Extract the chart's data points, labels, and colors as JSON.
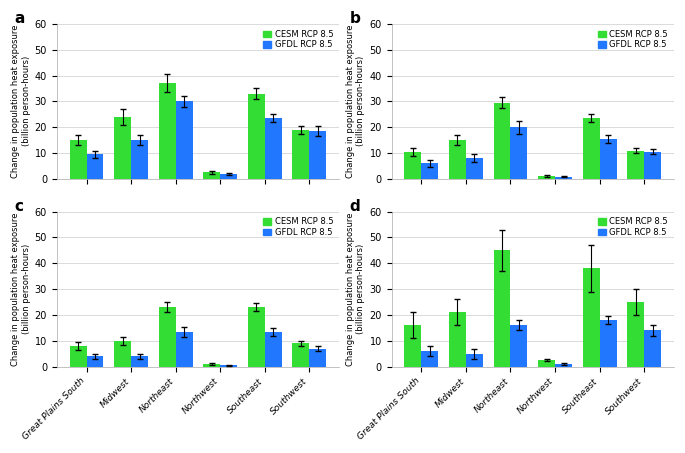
{
  "categories": [
    "Great Plains South",
    "Midwest",
    "Northeast",
    "Northwest",
    "Southeast",
    "Southwest"
  ],
  "panels": {
    "a": {
      "cesm": [
        15,
        24,
        37,
        2.5,
        33,
        19
      ],
      "gfdl": [
        9.5,
        15,
        30,
        1.8,
        23.5,
        18.5
      ],
      "cesm_err": [
        2,
        3,
        3.5,
        0.4,
        2,
        1.5
      ],
      "gfdl_err": [
        1.5,
        2,
        2,
        0.4,
        1.5,
        2
      ],
      "ylim": [
        0,
        60
      ],
      "yticks": [
        0,
        10,
        20,
        30,
        40,
        50,
        60
      ]
    },
    "b": {
      "cesm": [
        10.5,
        15,
        29.5,
        1.2,
        23.5,
        11
      ],
      "gfdl": [
        6,
        8,
        20,
        0.8,
        15.5,
        10.5
      ],
      "cesm_err": [
        1.5,
        2,
        2,
        0.3,
        1.5,
        1
      ],
      "gfdl_err": [
        1.5,
        1.5,
        2.5,
        0.2,
        1.5,
        1
      ],
      "ylim": [
        0,
        60
      ],
      "yticks": [
        0,
        10,
        20,
        30,
        40,
        50,
        60
      ]
    },
    "c": {
      "cesm": [
        8,
        10,
        23,
        1.0,
        23,
        9
      ],
      "gfdl": [
        4,
        4,
        13.5,
        0.5,
        13.5,
        7
      ],
      "cesm_err": [
        1.5,
        1.5,
        2,
        0.3,
        1.5,
        1
      ],
      "gfdl_err": [
        1,
        1,
        2,
        0.3,
        1.5,
        1
      ],
      "ylim": [
        0,
        60
      ],
      "yticks": [
        0,
        10,
        20,
        30,
        40,
        50,
        60
      ]
    },
    "d": {
      "cesm": [
        16,
        21,
        45,
        2.5,
        38,
        25
      ],
      "gfdl": [
        6,
        5,
        16,
        1.0,
        18,
        14
      ],
      "cesm_err": [
        5,
        5,
        8,
        0.5,
        9,
        5
      ],
      "gfdl_err": [
        2,
        2,
        2,
        0.5,
        1.5,
        2
      ],
      "ylim": [
        0,
        60
      ],
      "yticks": [
        0,
        10,
        20,
        30,
        40,
        50,
        60
      ]
    }
  },
  "cesm_color": "#33dd33",
  "gfdl_color": "#2277ff",
  "ylabel": "Change in population heat exposure\n(billion person-hours)",
  "panel_labels": [
    "a",
    "b",
    "c",
    "d"
  ],
  "legend_cesm": "CESM RCP 8.5",
  "legend_gfdl": "GFDL RCP 8.5"
}
